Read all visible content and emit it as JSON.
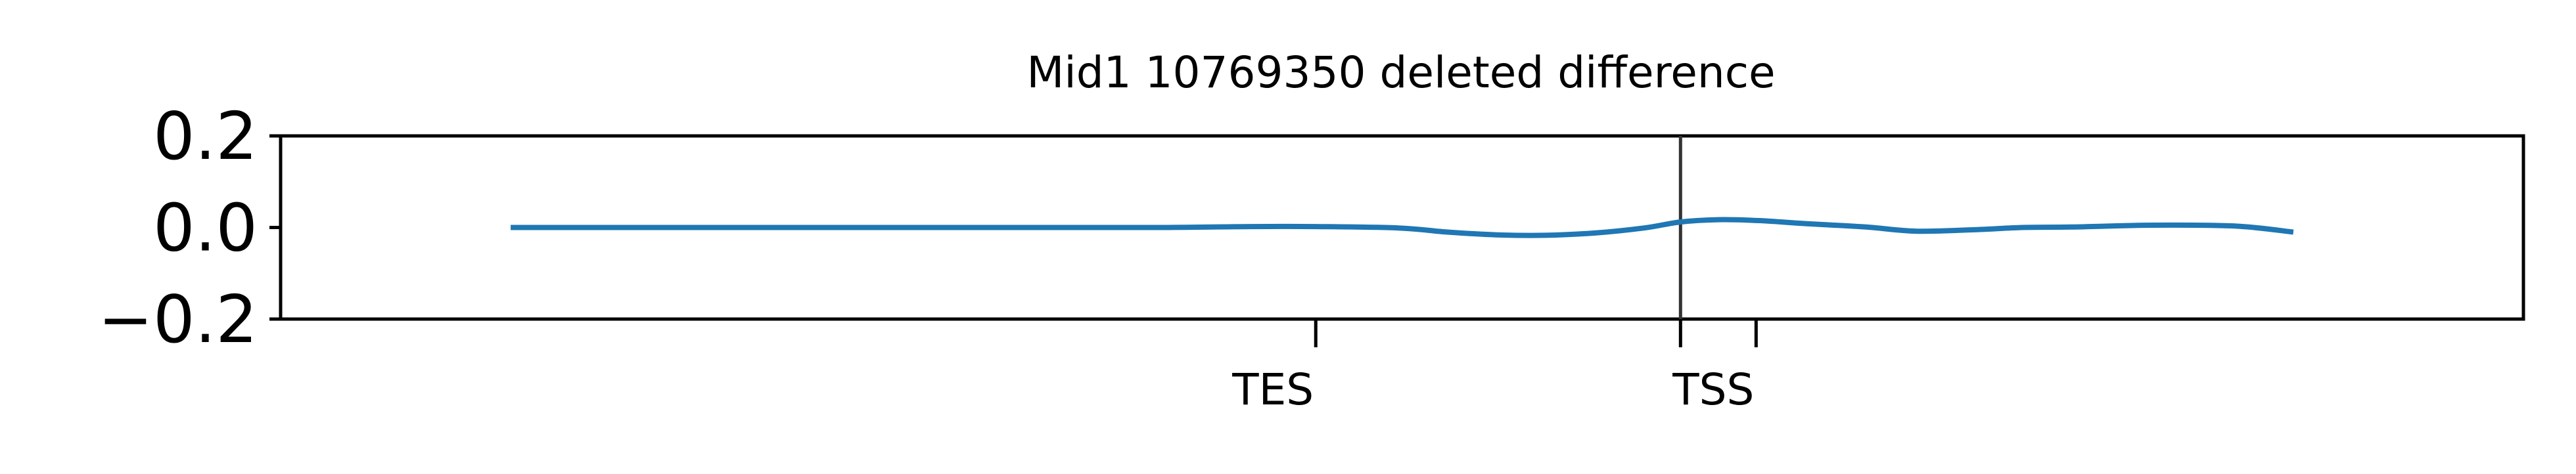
{
  "chart_data": {
    "type": "line",
    "title": "Mid1 10769350 deleted difference",
    "xlabel": "",
    "ylabel": "",
    "ylim": [
      -0.2,
      0.2
    ],
    "y_ticks": [
      {
        "value": 0.2,
        "label": "0.2"
      },
      {
        "value": 0.0,
        "label": "0.0"
      },
      {
        "value": -0.2,
        "label": "−0.2"
      }
    ],
    "x_ticks": [
      {
        "label": "TES",
        "x": 0
      },
      {
        "label": "",
        "x": 222
      },
      {
        "label": "TSS",
        "x": 268
      }
    ],
    "vline_x": 222,
    "xlim": [
      -630,
      735
    ],
    "grid": false,
    "legend": "none",
    "colors": {
      "series": "#1f77b4",
      "vline": "#333333",
      "axes": "#000000"
    },
    "series": [
      {
        "x": [
          -490,
          -400,
          -300,
          -200,
          -95,
          -40,
          0,
          50,
          80,
          110,
          140,
          170,
          200,
          222,
          245,
          270,
          300,
          335,
          365,
          400,
          430,
          460,
          510,
          560,
          595
        ],
        "values": [
          0.0,
          0.0,
          0.0,
          0.0,
          0.0,
          0.002,
          0.002,
          -0.001,
          -0.01,
          -0.016,
          -0.017,
          -0.012,
          -0.001,
          0.012,
          0.017,
          0.015,
          0.008,
          0.001,
          -0.008,
          -0.005,
          0.0,
          0.001,
          0.005,
          0.003,
          -0.01
        ]
      }
    ]
  }
}
